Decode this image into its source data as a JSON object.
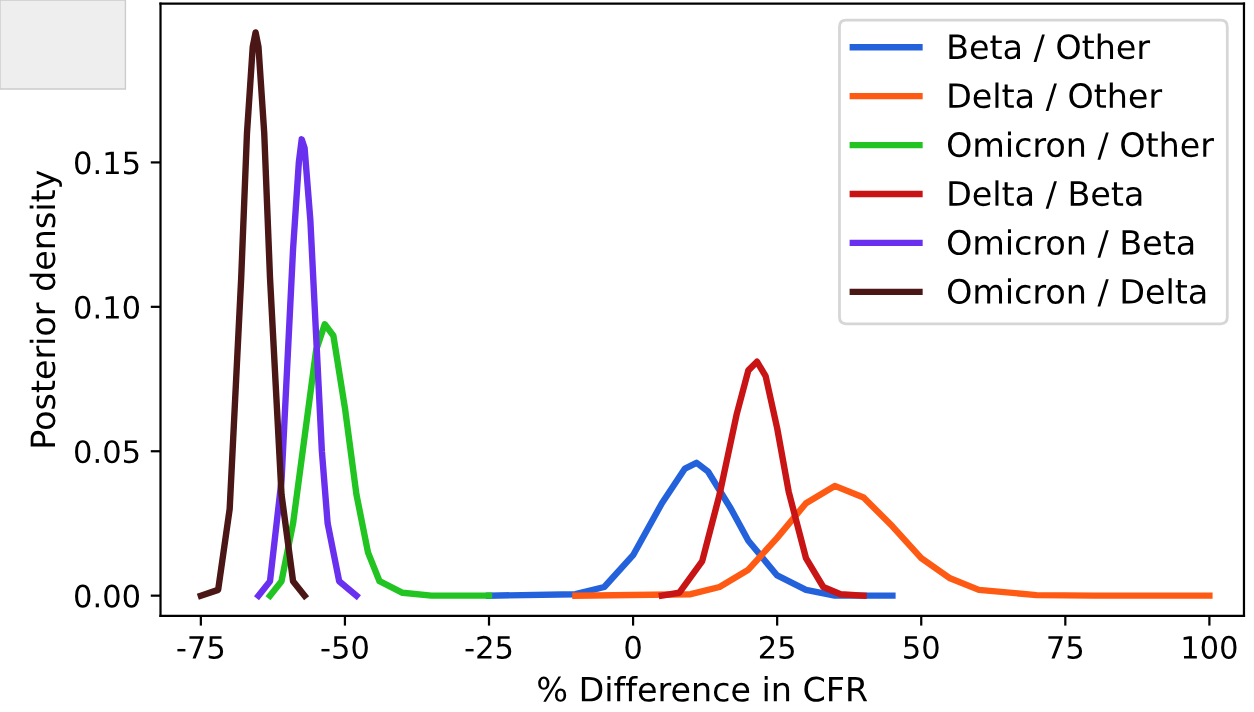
{
  "chart_data": {
    "type": "line",
    "xlabel": "% Difference in CFR",
    "ylabel": "Posterior density",
    "xlim": [
      -82,
      106
    ],
    "ylim": [
      -0.007,
      0.205
    ],
    "xticks": [
      -75,
      -50,
      -25,
      0,
      25,
      50,
      75,
      100
    ],
    "yticks": [
      {
        "value": 0,
        "label": "0.00"
      },
      {
        "value": 0.05,
        "label": "0.05"
      },
      {
        "value": 0.1,
        "label": "0.10"
      },
      {
        "value": 0.15,
        "label": "0.15"
      }
    ],
    "grid": false,
    "legend": "top right",
    "marker": "none",
    "line_style": "solid",
    "series": [
      {
        "name": "Beta / Other",
        "color": "#2462dc",
        "x": [
          -25,
          -10,
          -5,
          0,
          5,
          9,
          11,
          13,
          17,
          20,
          25,
          30,
          35,
          45
        ],
        "values": [
          0,
          0.0005,
          0.003,
          0.014,
          0.032,
          0.044,
          0.046,
          0.043,
          0.03,
          0.019,
          0.007,
          0.002,
          0,
          0
        ]
      },
      {
        "name": "Delta / Other",
        "color": "#ff5a14",
        "x": [
          -10,
          10,
          15,
          20,
          25,
          30,
          35,
          40,
          45,
          50,
          55,
          60,
          70,
          80,
          100
        ],
        "values": [
          0,
          0.0005,
          0.003,
          0.009,
          0.02,
          0.032,
          0.038,
          0.034,
          0.024,
          0.013,
          0.006,
          0.002,
          0.0002,
          0,
          0
        ]
      },
      {
        "name": "Omicron / Other",
        "color": "#22c422",
        "x": [
          -63,
          -61,
          -59,
          -57,
          -55,
          -53.5,
          -52,
          -50,
          -48,
          -46,
          -44,
          -40,
          -35,
          -25
        ],
        "values": [
          0,
          0.005,
          0.025,
          0.055,
          0.085,
          0.094,
          0.09,
          0.065,
          0.035,
          0.015,
          0.005,
          0.001,
          0,
          0
        ]
      },
      {
        "name": "Delta / Beta",
        "color": "#c81414",
        "x": [
          5,
          8,
          12,
          15,
          18,
          20,
          21.5,
          23,
          25,
          27,
          30,
          33,
          36,
          40
        ],
        "values": [
          0,
          0.001,
          0.012,
          0.035,
          0.063,
          0.078,
          0.081,
          0.076,
          0.058,
          0.036,
          0.013,
          0.003,
          0.0005,
          0
        ]
      },
      {
        "name": "Omicron / Beta",
        "color": "#6a30f0",
        "x": [
          -65,
          -63,
          -61,
          -60,
          -59,
          -58,
          -57.5,
          -57,
          -56,
          -55,
          -54,
          -53,
          -51,
          -48
        ],
        "values": [
          0,
          0.005,
          0.04,
          0.08,
          0.12,
          0.15,
          0.158,
          0.155,
          0.13,
          0.09,
          0.05,
          0.025,
          0.005,
          0
        ]
      },
      {
        "name": "Omicron / Delta",
        "color": "#4a1616",
        "x": [
          -75,
          -72,
          -70,
          -68,
          -67,
          -66,
          -65.5,
          -65,
          -64,
          -63,
          -61,
          -59,
          -57
        ],
        "values": [
          0,
          0.002,
          0.03,
          0.11,
          0.16,
          0.19,
          0.195,
          0.19,
          0.16,
          0.11,
          0.035,
          0.005,
          0
        ]
      }
    ]
  }
}
